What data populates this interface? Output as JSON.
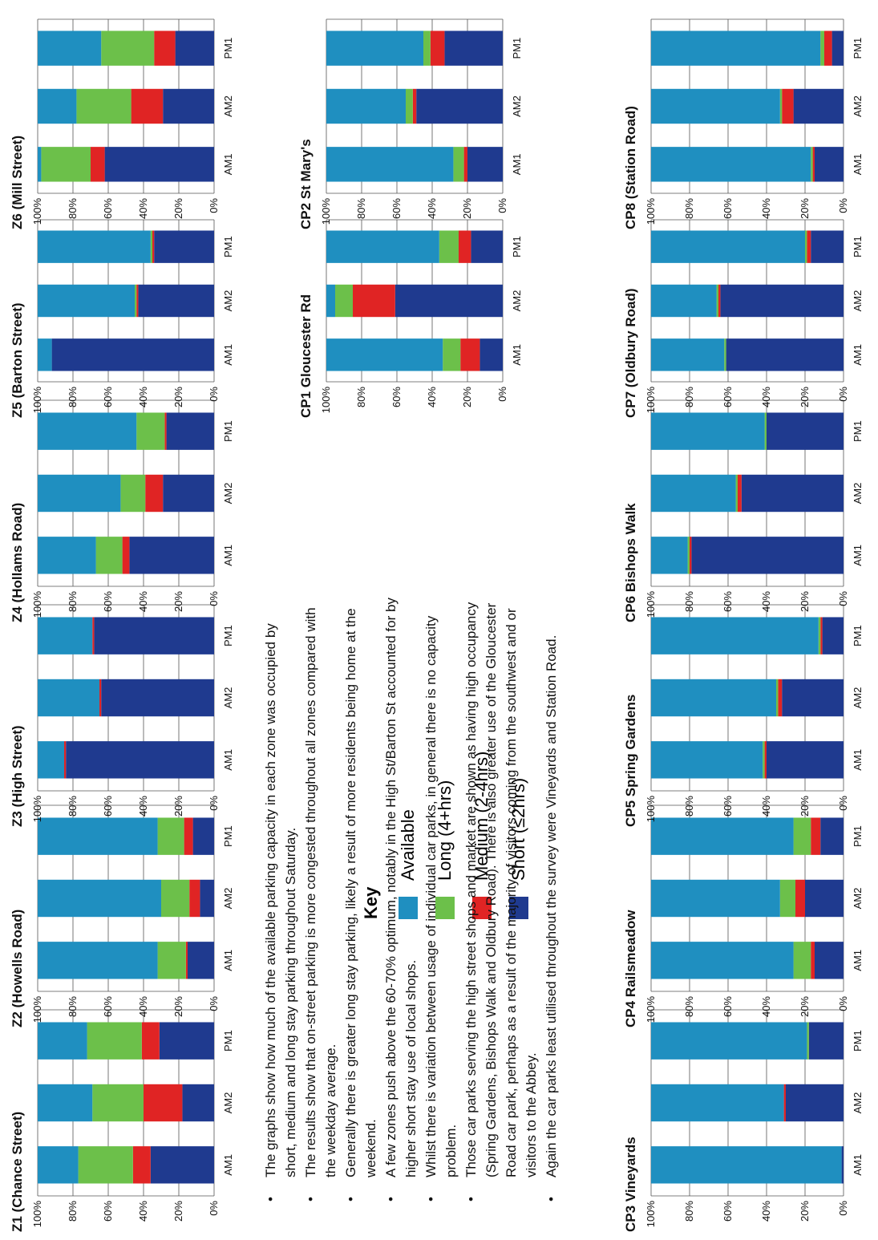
{
  "legend": {
    "title": "Key",
    "items": [
      {
        "label": "Available",
        "color": "#1f8fc0"
      },
      {
        "label": "Long  (4+hrs)",
        "color": "#6cc04a"
      },
      {
        "label": "Medium (2-4hrs)",
        "color": "#e02424"
      },
      {
        "label": "Short (≤2hrs)",
        "color": "#1f3a8f"
      }
    ]
  },
  "notes": [
    "The graphs show how much of the available parking capacity in each zone was occupied by short, medium and long stay parking throughout Saturday.",
    "The results show that on-street parking is more congested throughout all zones compared with the weekday average.",
    "Generally there is greater long stay parking, likely a result of more residents being home at the weekend.",
    "A few zones push above the 60-70% optimum, notably in the High St/Barton St accounted for by higher short stay use of local shops.",
    "Whilst there is variation between  usage of individual car parks, in general there is no capacity problem.",
    "Those car parks serving the high street shops and market are shown as having high occupancy (Spring Gardens, Bishops Walk and Oldbury Road). There is also greater use of the Gloucester Road car park, perhaps as a result of the majority  of visitors coming from the southwest and or visitors to the Abbey.",
    "Again the car parks least utilised throughout the survey were  Vineyards and Station Road."
  ],
  "chart_data": [
    {
      "type": "bar",
      "title": "Z1 (Chance Street)",
      "categories": [
        "AM1",
        "AM2",
        "PM1"
      ],
      "yticks": [
        "100%",
        "80%",
        "60%",
        "40%",
        "20%",
        "0%"
      ],
      "ylim": [
        0,
        100
      ],
      "series": [
        {
          "name": "Short (≤2hrs)",
          "values": [
            36,
            18,
            31
          ]
        },
        {
          "name": "Medium (2-4hrs)",
          "values": [
            10,
            22,
            10
          ]
        },
        {
          "name": "Long  (4+hrs)",
          "values": [
            31,
            29,
            31
          ]
        },
        {
          "name": "Available",
          "values": [
            23,
            31,
            28
          ]
        }
      ]
    },
    {
      "type": "bar",
      "title": "Z2 (Howells Road)",
      "categories": [
        "AM1",
        "AM2",
        "PM1"
      ],
      "yticks": [
        "100%",
        "80%",
        "60%",
        "40%",
        "20%",
        "0%"
      ],
      "ylim": [
        0,
        100
      ],
      "series": [
        {
          "name": "Short (≤2hrs)",
          "values": [
            15,
            8,
            12
          ]
        },
        {
          "name": "Medium (2-4hrs)",
          "values": [
            1,
            6,
            5
          ]
        },
        {
          "name": "Long  (4+hrs)",
          "values": [
            16,
            16,
            15
          ]
        },
        {
          "name": "Available",
          "values": [
            68,
            70,
            68
          ]
        }
      ]
    },
    {
      "type": "bar",
      "title": "Z3 (High Street)",
      "categories": [
        "AM1",
        "AM2",
        "PM1"
      ],
      "yticks": [
        "100%",
        "80%",
        "60%",
        "40%",
        "20%",
        "0%"
      ],
      "ylim": [
        0,
        100
      ],
      "series": [
        {
          "name": "Short (≤2hrs)",
          "values": [
            84,
            64,
            68
          ]
        },
        {
          "name": "Medium (2-4hrs)",
          "values": [
            1,
            1,
            1
          ]
        },
        {
          "name": "Long  (4+hrs)",
          "values": [
            0,
            0,
            0
          ]
        },
        {
          "name": "Available",
          "values": [
            15,
            35,
            31
          ]
        }
      ]
    },
    {
      "type": "bar",
      "title": "Z4 (Hollams Road)",
      "categories": [
        "AM1",
        "AM2",
        "PM1"
      ],
      "yticks": [
        "100%",
        "80%",
        "60%",
        "40%",
        "20%",
        "0%"
      ],
      "ylim": [
        0,
        100
      ],
      "series": [
        {
          "name": "Short (≤2hrs)",
          "values": [
            48,
            29,
            27
          ]
        },
        {
          "name": "Medium (2-4hrs)",
          "values": [
            4,
            10,
            1
          ]
        },
        {
          "name": "Long  (4+hrs)",
          "values": [
            15,
            14,
            16
          ]
        },
        {
          "name": "Available",
          "values": [
            33,
            47,
            56
          ]
        }
      ]
    },
    {
      "type": "bar",
      "title": "Z5 (Barton Street)",
      "categories": [
        "AM1",
        "AM2",
        "PM1"
      ],
      "yticks": [
        "100%",
        "80%",
        "60%",
        "40%",
        "20%",
        "0%"
      ],
      "ylim": [
        0,
        100
      ],
      "series": [
        {
          "name": "Short (≤2hrs)",
          "values": [
            92,
            43,
            34
          ]
        },
        {
          "name": "Medium (2-4hrs)",
          "values": [
            0,
            1,
            1
          ]
        },
        {
          "name": "Long  (4+hrs)",
          "values": [
            0,
            1,
            1
          ]
        },
        {
          "name": "Available",
          "values": [
            8,
            55,
            64
          ]
        }
      ]
    },
    {
      "type": "bar",
      "title": "Z6 (Mill Street)",
      "categories": [
        "AM1",
        "AM2",
        "PM1"
      ],
      "yticks": [
        "100%",
        "80%",
        "60%",
        "40%",
        "20%",
        "0%"
      ],
      "ylim": [
        0,
        100
      ],
      "series": [
        {
          "name": "Short (≤2hrs)",
          "values": [
            62,
            29,
            22
          ]
        },
        {
          "name": "Medium (2-4hrs)",
          "values": [
            8,
            18,
            12
          ]
        },
        {
          "name": "Long  (4+hrs)",
          "values": [
            28,
            31,
            30
          ]
        },
        {
          "name": "Available",
          "values": [
            2,
            22,
            36
          ]
        }
      ]
    },
    {
      "type": "bar",
      "title": "CP1 Gloucester Rd",
      "categories": [
        "AM1",
        "AM2",
        "PM1"
      ],
      "yticks": [
        "100%",
        "80%",
        "60%",
        "40%",
        "20%",
        "0%"
      ],
      "ylim": [
        0,
        100
      ],
      "series": [
        {
          "name": "Short (≤2hrs)",
          "values": [
            13,
            61,
            18
          ]
        },
        {
          "name": "Medium (2-4hrs)",
          "values": [
            11,
            24,
            7
          ]
        },
        {
          "name": "Long  (4+hrs)",
          "values": [
            10,
            10,
            11
          ]
        },
        {
          "name": "Available",
          "values": [
            66,
            5,
            64
          ]
        }
      ]
    },
    {
      "type": "bar",
      "title": "CP2 St Mary's",
      "categories": [
        "AM1",
        "AM2",
        "PM1"
      ],
      "yticks": [
        "100%",
        "80%",
        "60%",
        "40%",
        "20%",
        "0%"
      ],
      "ylim": [
        0,
        100
      ],
      "series": [
        {
          "name": "Short (≤2hrs)",
          "values": [
            20,
            49,
            33
          ]
        },
        {
          "name": "Medium (2-4hrs)",
          "values": [
            2,
            2,
            8
          ]
        },
        {
          "name": "Long  (4+hrs)",
          "values": [
            6,
            4,
            4
          ]
        },
        {
          "name": "Available",
          "values": [
            72,
            45,
            55
          ]
        }
      ]
    },
    {
      "type": "bar",
      "title": "CP3 Vineyards",
      "categories": [
        "AM1",
        "AM2",
        "PM1"
      ],
      "yticks": [
        "100%",
        "80%",
        "60%",
        "40%",
        "20%",
        "0%"
      ],
      "ylim": [
        0,
        100
      ],
      "series": [
        {
          "name": "Short (≤2hrs)",
          "values": [
            1,
            30,
            18
          ]
        },
        {
          "name": "Medium (2-4hrs)",
          "values": [
            0,
            1,
            0
          ]
        },
        {
          "name": "Long  (4+hrs)",
          "values": [
            0,
            0,
            1
          ]
        },
        {
          "name": "Available",
          "values": [
            99,
            69,
            81
          ]
        }
      ]
    },
    {
      "type": "bar",
      "title": "CP4 Railsmeadow",
      "categories": [
        "AM1",
        "AM2",
        "PM1"
      ],
      "yticks": [
        "100%",
        "80%",
        "60%",
        "40%",
        "20%",
        "0%"
      ],
      "ylim": [
        0,
        100
      ],
      "series": [
        {
          "name": "Short (≤2hrs)",
          "values": [
            15,
            20,
            12
          ]
        },
        {
          "name": "Medium (2-4hrs)",
          "values": [
            2,
            5,
            5
          ]
        },
        {
          "name": "Long  (4+hrs)",
          "values": [
            9,
            8,
            9
          ]
        },
        {
          "name": "Available",
          "values": [
            74,
            67,
            74
          ]
        }
      ]
    },
    {
      "type": "bar",
      "title": "CP5 Spring Gardens",
      "categories": [
        "AM1",
        "AM2",
        "PM1"
      ],
      "yticks": [
        "100%",
        "80%",
        "60%",
        "40%",
        "20%",
        "0%"
      ],
      "ylim": [
        0,
        100
      ],
      "series": [
        {
          "name": "Short (≤2hrs)",
          "values": [
            40,
            32,
            11
          ]
        },
        {
          "name": "Medium (2-4hrs)",
          "values": [
            1,
            2,
            1
          ]
        },
        {
          "name": "Long  (4+hrs)",
          "values": [
            1,
            1,
            1
          ]
        },
        {
          "name": "Available",
          "values": [
            58,
            65,
            87
          ]
        }
      ]
    },
    {
      "type": "bar",
      "title": "CP6 Bishops Walk",
      "categories": [
        "AM1",
        "AM2",
        "PM1"
      ],
      "yticks": [
        "100%",
        "80%",
        "60%",
        "40%",
        "20%",
        "0%"
      ],
      "ylim": [
        0,
        100
      ],
      "series": [
        {
          "name": "Short (≤2hrs)",
          "values": [
            79,
            53,
            40
          ]
        },
        {
          "name": "Medium (2-4hrs)",
          "values": [
            1,
            2,
            0
          ]
        },
        {
          "name": "Long  (4+hrs)",
          "values": [
            1,
            1,
            1
          ]
        },
        {
          "name": "Available",
          "values": [
            19,
            44,
            59
          ]
        }
      ]
    },
    {
      "type": "bar",
      "title": "CP7 (Oldbury Road)",
      "categories": [
        "AM1",
        "AM2",
        "PM1"
      ],
      "yticks": [
        "100%",
        "80%",
        "60%",
        "40%",
        "20%",
        "0%"
      ],
      "ylim": [
        0,
        100
      ],
      "series": [
        {
          "name": "Short (≤2hrs)",
          "values": [
            61,
            64,
            17
          ]
        },
        {
          "name": "Medium (2-4hrs)",
          "values": [
            0,
            1,
            2
          ]
        },
        {
          "name": "Long  (4+hrs)",
          "values": [
            1,
            1,
            1
          ]
        },
        {
          "name": "Available",
          "values": [
            38,
            34,
            80
          ]
        }
      ]
    },
    {
      "type": "bar",
      "title": "CP8 (Station Road)",
      "categories": [
        "AM1",
        "AM2",
        "PM1"
      ],
      "yticks": [
        "100%",
        "80%",
        "60%",
        "40%",
        "20%",
        "0%"
      ],
      "ylim": [
        0,
        100
      ],
      "series": [
        {
          "name": "Short (≤2hrs)",
          "values": [
            15,
            26,
            6
          ]
        },
        {
          "name": "Medium (2-4hrs)",
          "values": [
            1,
            6,
            4
          ]
        },
        {
          "name": "Long  (4+hrs)",
          "values": [
            1,
            1,
            2
          ]
        },
        {
          "name": "Available",
          "values": [
            83,
            67,
            88
          ]
        }
      ]
    }
  ]
}
